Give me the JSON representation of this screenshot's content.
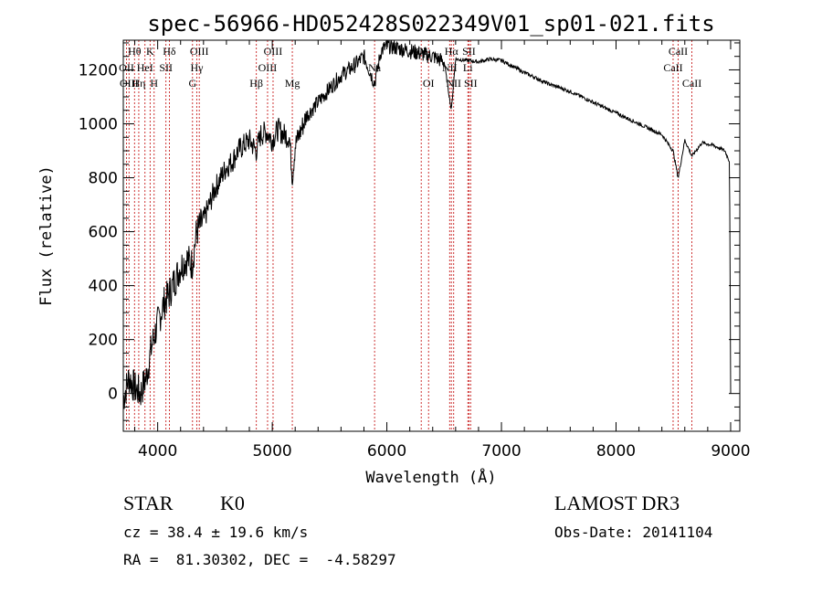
{
  "chart_data": {
    "type": "line",
    "title": "spec-56966-HD052428S022349V01_sp01-021.fits",
    "xlabel": "Wavelength (Å)",
    "ylabel": "Flux (relative)",
    "xlim": [
      3700,
      9080
    ],
    "ylim": [
      -140,
      1310
    ],
    "xticks": [
      4000,
      5000,
      6000,
      7000,
      8000,
      9000
    ],
    "yticks": [
      0,
      200,
      400,
      600,
      800,
      1000,
      1200
    ],
    "grid": false,
    "series": [
      {
        "x": [
          3700,
          3750,
          3800,
          3850,
          3900,
          3950,
          4000,
          4050,
          4100,
          4150,
          4200,
          4250,
          4300,
          4340,
          4400,
          4450,
          4500,
          4550,
          4600,
          4650,
          4700,
          4750,
          4800,
          4861,
          4900,
          4950,
          5000,
          5050,
          5100,
          5150,
          5175,
          5200,
          5300,
          5400,
          5500,
          5600,
          5700,
          5800,
          5893,
          5950,
          6000,
          6100,
          6200,
          6300,
          6400,
          6500,
          6563,
          6600,
          6700,
          6800,
          6900,
          7000,
          7200,
          7400,
          7600,
          7800,
          8000,
          8200,
          8400,
          8498,
          8542,
          8600,
          8662,
          8750,
          8850,
          8950,
          8990,
          9000
        ],
        "y": [
          -20,
          60,
          20,
          0,
          60,
          180,
          260,
          330,
          370,
          420,
          470,
          500,
          480,
          600,
          640,
          700,
          760,
          800,
          840,
          860,
          900,
          920,
          940,
          900,
          960,
          970,
          940,
          980,
          960,
          950,
          800,
          920,
          1030,
          1080,
          1130,
          1180,
          1210,
          1250,
          1150,
          1270,
          1290,
          1280,
          1270,
          1260,
          1250,
          1230,
          1050,
          1240,
          1235,
          1230,
          1240,
          1235,
          1190,
          1150,
          1120,
          1080,
          1040,
          1000,
          960,
          900,
          800,
          940,
          880,
          930,
          920,
          900,
          860,
          0
        ]
      }
    ],
    "lines": [
      {
        "wl": 3728,
        "label": "OII",
        "row": 1
      },
      {
        "wl": 3750,
        "label": "OIII",
        "row": 2
      },
      {
        "wl": 3798,
        "label": "Hθ",
        "row": 0
      },
      {
        "wl": 3835,
        "label": "Hη",
        "row": 2
      },
      {
        "wl": 3889,
        "label": "HeI",
        "row": 1
      },
      {
        "wl": 3934,
        "label": "K",
        "row": 0
      },
      {
        "wl": 3969,
        "label": "H",
        "row": 2
      },
      {
        "wl": 4072,
        "label": "SII",
        "row": 1
      },
      {
        "wl": 4102,
        "label": "Hδ",
        "row": 0
      },
      {
        "wl": 4304,
        "label": "G",
        "row": 2
      },
      {
        "wl": 4341,
        "label": "Hγ",
        "row": 1
      },
      {
        "wl": 4363,
        "label": "OIII",
        "row": 0
      },
      {
        "wl": 4861,
        "label": "Hβ",
        "row": 2
      },
      {
        "wl": 4959,
        "label": "OIII",
        "row": 1
      },
      {
        "wl": 5007,
        "label": "OIII",
        "row": 0
      },
      {
        "wl": 5175,
        "label": "Mg",
        "row": 2
      },
      {
        "wl": 5893,
        "label": "Na",
        "row": 1
      },
      {
        "wl": 6300,
        "label": "OI",
        "row": 0
      },
      {
        "wl": 6364,
        "label": "OI",
        "row": 2
      },
      {
        "wl": 6548,
        "label": "NII",
        "row": 1
      },
      {
        "wl": 6563,
        "label": "Hα",
        "row": 0
      },
      {
        "wl": 6583,
        "label": "NII",
        "row": 2
      },
      {
        "wl": 6707,
        "label": "Li",
        "row": 1
      },
      {
        "wl": 6716,
        "label": "SII",
        "row": 0
      },
      {
        "wl": 6731,
        "label": "SII",
        "row": 2
      },
      {
        "wl": 8498,
        "label": "CaII",
        "row": 1
      },
      {
        "wl": 8542,
        "label": "CaII",
        "row": 0
      },
      {
        "wl": 8662,
        "label": "CaII",
        "row": 2
      }
    ]
  },
  "info": {
    "object": "STAR",
    "subclass": "K0",
    "survey": "LAMOST DR3",
    "cz": "cz = 38.4 ± 19.6 km/s",
    "obs_date": "Obs-Date: 20141104",
    "coords": "RA =  81.30302, DEC =  -4.58297"
  }
}
